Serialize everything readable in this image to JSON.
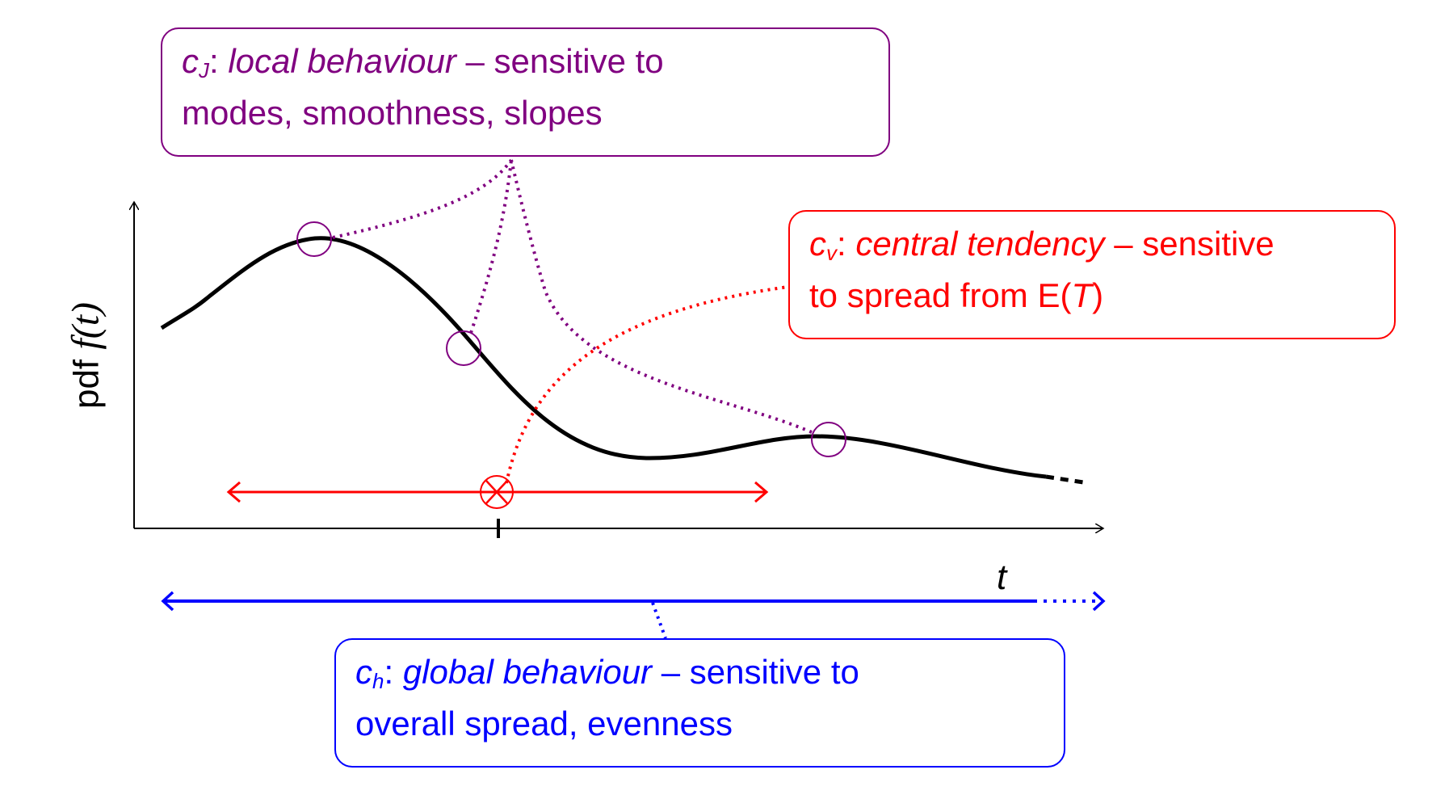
{
  "callouts": {
    "cj": {
      "symbol": "c",
      "subscript": "J",
      "term": "local behaviour",
      "rest_line1": " – sensitive to",
      "line2": "modes, smoothness, slopes",
      "color": "#800080"
    },
    "cv": {
      "symbol": "c",
      "subscript": "v",
      "term": "central tendency",
      "rest_line1": " – sensitive",
      "line2_prefix": "to spread from E(",
      "line2_var": "T",
      "line2_suffix": ")",
      "color": "#ff0000"
    },
    "ch": {
      "symbol": "c",
      "subscript": "h",
      "term": "global behaviour",
      "rest_line1": " – sensitive to",
      "line2": "overall spread, evenness",
      "color": "#0000ff"
    }
  },
  "axes": {
    "ylabel_prefix": "pdf ",
    "ylabel_func": "f(t)",
    "xlabel": "t"
  }
}
